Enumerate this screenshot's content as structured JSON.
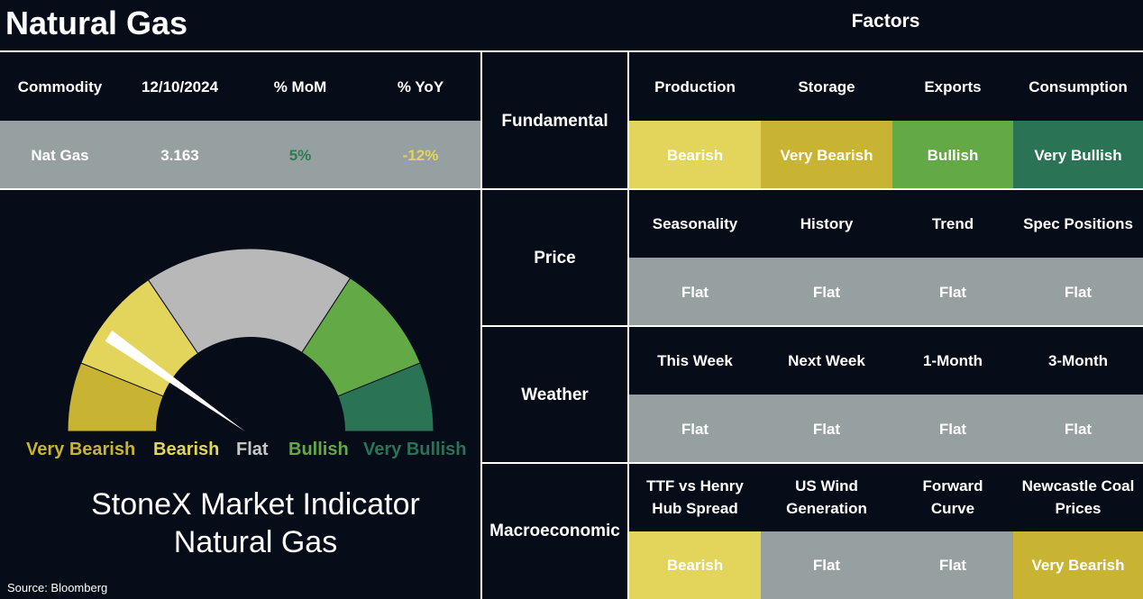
{
  "header": {
    "title": "Natural Gas",
    "factors_title": "Factors"
  },
  "commodity_table": {
    "headers": [
      "Commodity",
      "12/10/2024",
      "% MoM",
      "% YoY"
    ],
    "row": {
      "name": "Nat Gas",
      "price": "3.163",
      "mom": "5%",
      "yoy": "-12%"
    },
    "colors": {
      "mom": "#2e7d4f",
      "yoy": "#e3d55b"
    }
  },
  "gauge": {
    "labels": [
      "Very Bearish",
      "Bearish",
      "Flat",
      "Bullish",
      "Very Bullish"
    ],
    "label_colors": [
      "#c9b332",
      "#e3d55b",
      "#c8c8c8",
      "#63a946",
      "#2a7354"
    ],
    "segment_colors": [
      "#c9b332",
      "#e3d55b",
      "#b8b8b8",
      "#63a946",
      "#2a7354"
    ],
    "needle_level": "Bearish",
    "indicator_title": [
      "StoneX Market Indicator",
      "Natural Gas"
    ]
  },
  "factors": [
    {
      "category": "Fundamental",
      "headers": [
        "Production",
        "Storage",
        "Exports",
        "Consumption"
      ],
      "values": [
        "Bearish",
        "Very Bearish",
        "Bullish",
        "Very Bullish"
      ]
    },
    {
      "category": "Price",
      "headers": [
        "Seasonality",
        "History",
        "Trend",
        "Spec Positions"
      ],
      "values": [
        "Flat",
        "Flat",
        "Flat",
        "Flat"
      ]
    },
    {
      "category": "Weather",
      "headers": [
        "This Week",
        "Next Week",
        "1-Month",
        "3-Month"
      ],
      "values": [
        "Flat",
        "Flat",
        "Flat",
        "Flat"
      ]
    },
    {
      "category": "Macroeconomic",
      "headers": [
        "TTF vs Henry Hub Spread",
        "US Wind Generation",
        "Forward Curve",
        "Newcastle Coal Prices"
      ],
      "values": [
        "Bearish",
        "Flat",
        "Flat",
        "Very Bearish"
      ]
    }
  ],
  "source": "Source: Bloomberg"
}
